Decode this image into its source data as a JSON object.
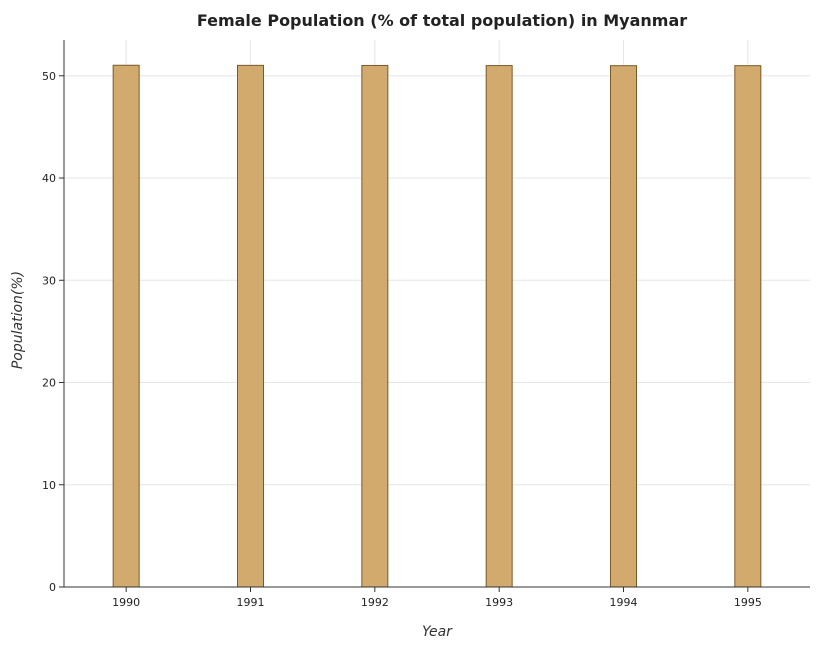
{
  "chart_data": {
    "type": "bar",
    "title": "Female Population (% of total population) in Myanmar",
    "xlabel": "Year",
    "ylabel": "Population(%)",
    "categories": [
      "1990",
      "1991",
      "1992",
      "1993",
      "1994",
      "1995"
    ],
    "values": [
      51.03,
      51.02,
      51.01,
      51.0,
      50.99,
      50.99
    ],
    "ylim": [
      0,
      53.5
    ],
    "yticks": [
      0,
      10,
      20,
      30,
      40,
      50
    ],
    "grid": true,
    "bar_color": "#d2aa6d"
  }
}
